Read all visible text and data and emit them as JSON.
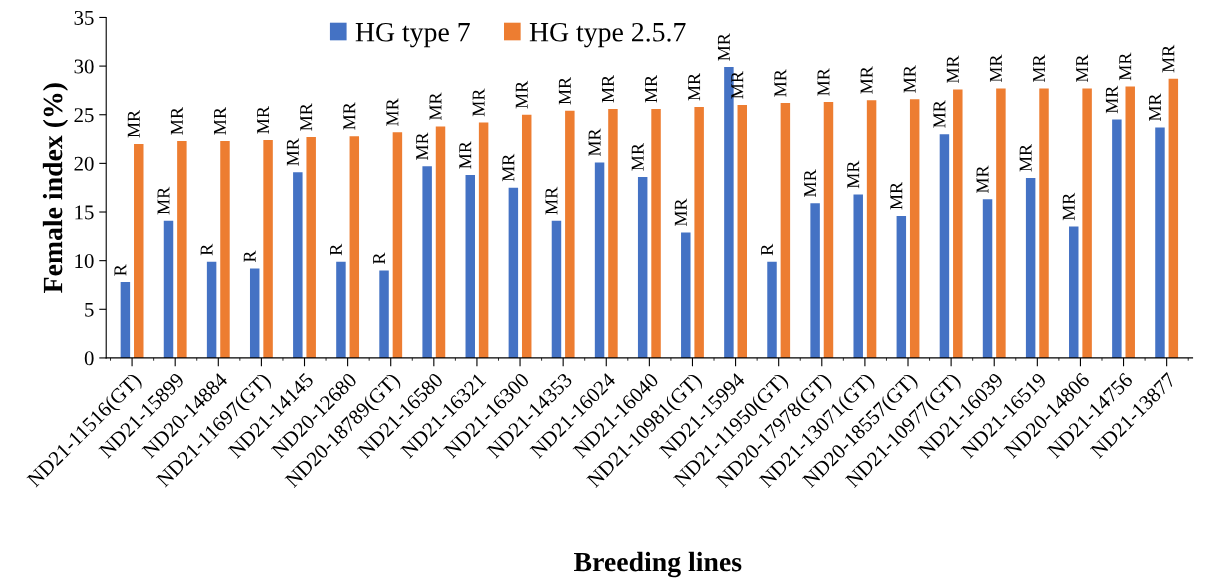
{
  "chart_data": {
    "type": "bar",
    "xlabel": "Breeding lines",
    "ylabel": "Female index (%)",
    "categories": [
      "ND21-11516(GT)",
      "ND21-15899",
      "ND20-14884",
      "ND21-11697(GT)",
      "ND21-14145",
      "ND20-12680",
      "ND20-18789(GT)",
      "ND21-16580",
      "ND21-16321",
      "ND21-16300",
      "ND21-14353",
      "ND21-16024",
      "ND21-16040",
      "ND21-10981(GT)",
      "ND21-15994",
      "ND21-11950(GT)",
      "ND20-17978(GT)",
      "ND21-13071(GT)",
      "ND20-18557(GT)",
      "ND21-10977(GT)",
      "ND21-16039",
      "ND21-16519",
      "ND20-14806",
      "ND21-14756",
      "ND21-13877"
    ],
    "series": [
      {
        "name": "HG type 7",
        "color": "#4472c4",
        "values": [
          7.8,
          14.1,
          9.9,
          9.2,
          19.1,
          9.9,
          9.0,
          19.7,
          18.8,
          17.5,
          14.1,
          20.1,
          18.6,
          12.9,
          29.9,
          9.9,
          15.9,
          16.8,
          14.6,
          23.0,
          16.3,
          18.5,
          13.5,
          24.5,
          23.7
        ],
        "value_labels": [
          "R",
          "MR",
          "R",
          "R",
          "MR",
          "R",
          "R",
          "MR",
          "MR",
          "MR",
          "MR",
          "MR",
          "MR",
          "MR",
          "MR",
          "R",
          "MR",
          "MR",
          "MR",
          "MR",
          "MR",
          "MR",
          "MR",
          "MR",
          "MR"
        ]
      },
      {
        "name": "HG type 2.5.7",
        "color": "#ed7d31",
        "values": [
          22.0,
          22.3,
          22.3,
          22.4,
          22.7,
          22.8,
          23.2,
          23.8,
          24.2,
          25.0,
          25.4,
          25.6,
          25.6,
          25.8,
          26.0,
          26.2,
          26.3,
          26.5,
          26.6,
          27.6,
          27.7,
          27.7,
          27.7,
          27.9,
          28.7
        ],
        "value_labels": [
          "MR",
          "MR",
          "MR",
          "MR",
          "MR",
          "MR",
          "MR",
          "MR",
          "MR",
          "MR",
          "MR",
          "MR",
          "MR",
          "MR",
          "MR",
          "MR",
          "MR",
          "MR",
          "MR",
          "MR",
          "MR",
          "MR",
          "MR",
          "MR",
          "MR"
        ]
      }
    ],
    "ylim": [
      0,
      35
    ],
    "yticks": [
      0,
      5,
      10,
      15,
      20,
      25,
      30,
      35
    ],
    "grid": false,
    "legend": "top"
  }
}
